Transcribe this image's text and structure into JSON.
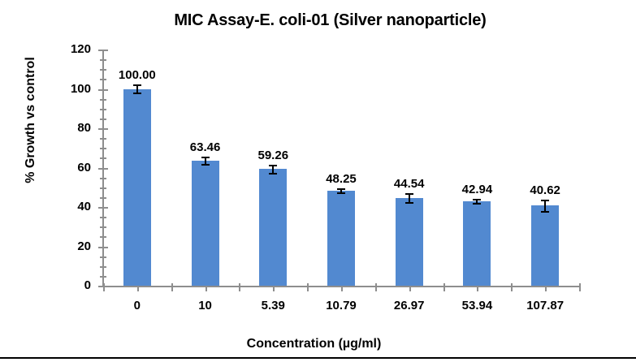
{
  "chart_data": {
    "type": "bar",
    "title": "MIC Assay-E. coli-01 (Silver nanoparticle)",
    "xlabel": "Concentration (µg/ml)",
    "ylabel": "% Growth vs control",
    "categories": [
      "0",
      "10",
      "5.39",
      "10.79",
      "26.97",
      "53.94",
      "107.87"
    ],
    "values": [
      100.0,
      63.46,
      59.26,
      48.25,
      44.54,
      42.94,
      40.62
    ],
    "data_labels": [
      "100.00",
      "63.46",
      "59.26",
      "48.25",
      "44.54",
      "42.94",
      "40.62"
    ],
    "error_bars": [
      2.2,
      2.0,
      2.3,
      1.2,
      2.3,
      1.3,
      3.1
    ],
    "ylim": [
      0,
      120
    ],
    "y_major_ticks": [
      0,
      20,
      40,
      60,
      80,
      100,
      120
    ],
    "y_minor_unit": 5,
    "grid": false,
    "legend": "none",
    "bar_color": "#5289D0",
    "error_bar_color": "#000000",
    "axis_color": "#8E8E8E",
    "text_color": "#000000",
    "background_color": "#FFFFFF"
  }
}
